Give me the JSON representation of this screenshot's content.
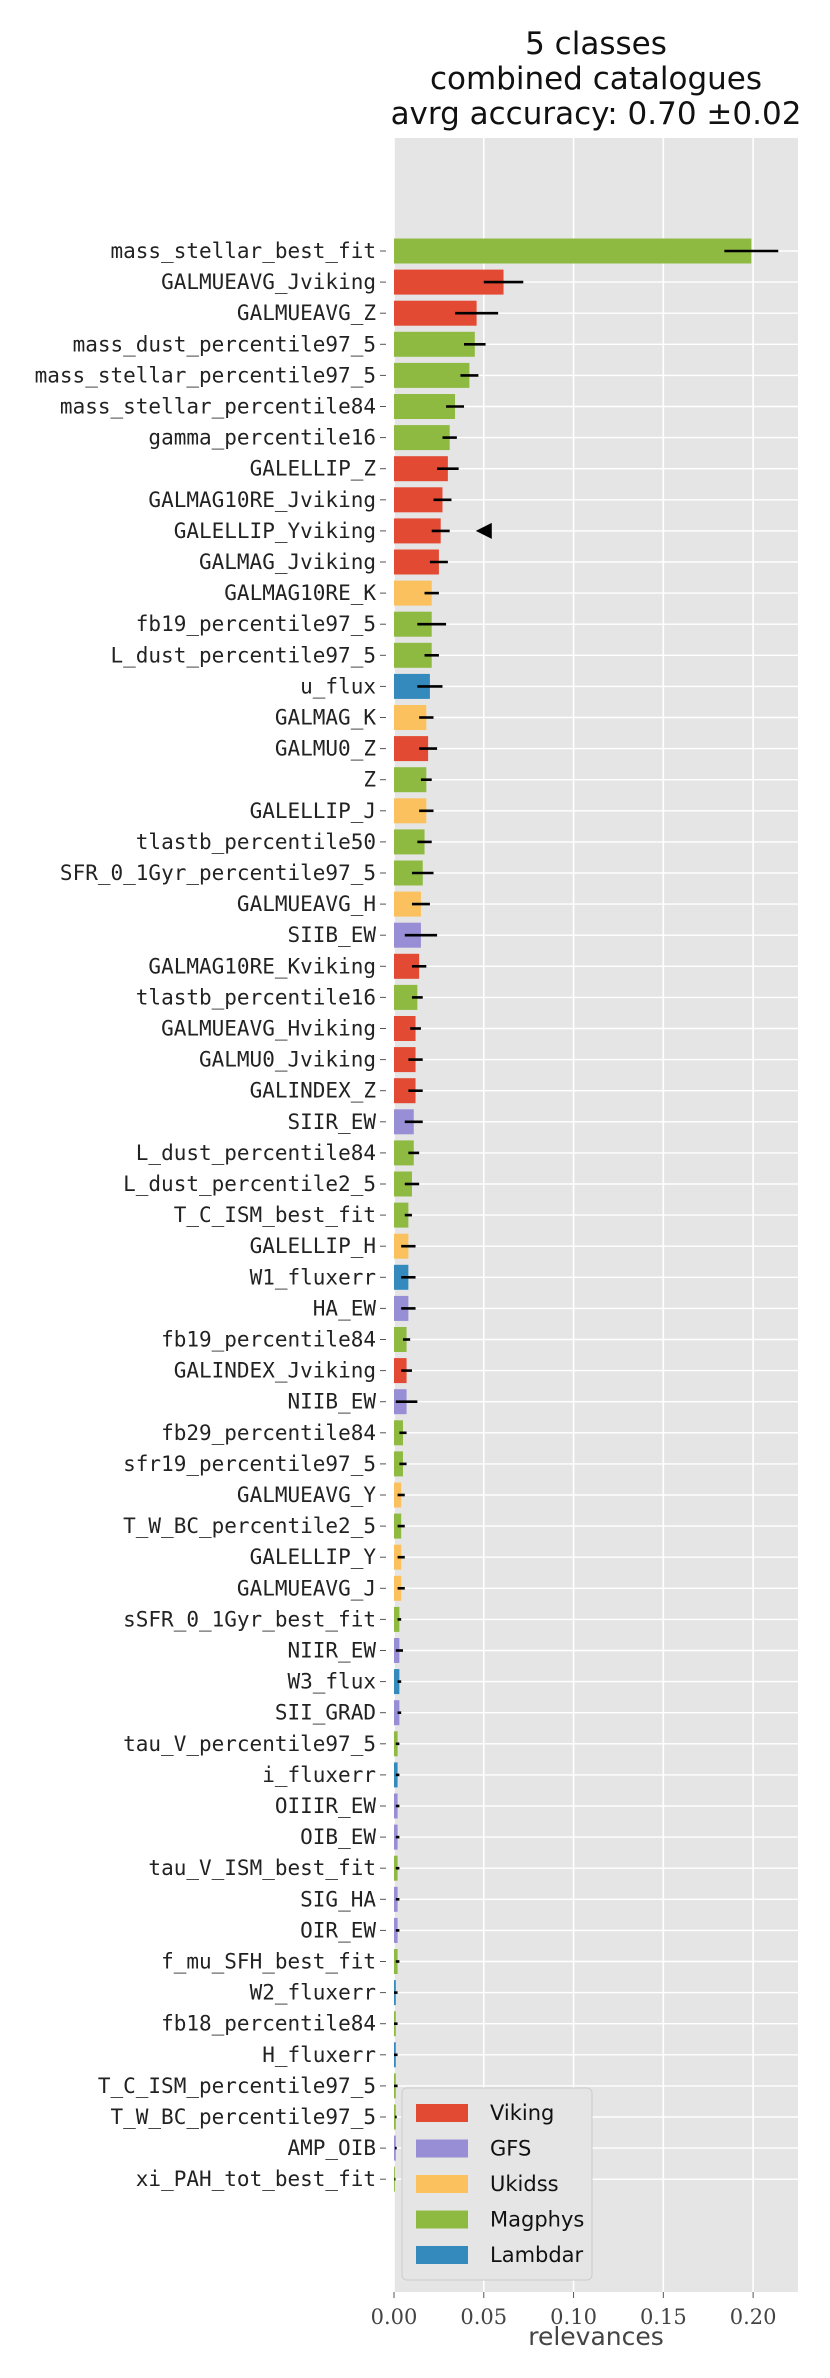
{
  "chart_data": {
    "type": "bar",
    "orientation": "horizontal",
    "title_lines": [
      "5 classes",
      "combined catalogues",
      "avrg accuracy: 0.70 ±0.02"
    ],
    "xlabel": "relevances",
    "ylabel": "",
    "xlim": [
      0.0,
      0.225
    ],
    "xticks": [
      0.0,
      0.05,
      0.1,
      0.15,
      0.2
    ],
    "xtick_labels": [
      "0.00",
      "0.05",
      "0.10",
      "0.15",
      "0.20"
    ],
    "grid": true,
    "legend_position": "lower-left",
    "marker": {
      "type": "left-pointing triangle",
      "category": "GALELLIP_Yviking",
      "x": 0.05
    },
    "classes": [
      {
        "name": "Viking",
        "color": "#e24a33"
      },
      {
        "name": "GFS",
        "color": "#988ed5"
      },
      {
        "name": "Ukidss",
        "color": "#fbc15e"
      },
      {
        "name": "Magphys",
        "color": "#8eba42"
      },
      {
        "name": "Lambdar",
        "color": "#348abd"
      }
    ],
    "bars": [
      {
        "label": "mass_stellar_best_fit",
        "value": 0.199,
        "error": 0.015,
        "class": "Magphys"
      },
      {
        "label": "GALMUEAVG_Jviking",
        "value": 0.061,
        "error": 0.011,
        "class": "Viking"
      },
      {
        "label": "GALMUEAVG_Z",
        "value": 0.046,
        "error": 0.012,
        "class": "Viking"
      },
      {
        "label": "mass_dust_percentile97_5",
        "value": 0.045,
        "error": 0.006,
        "class": "Magphys"
      },
      {
        "label": "mass_stellar_percentile97_5",
        "value": 0.042,
        "error": 0.005,
        "class": "Magphys"
      },
      {
        "label": "mass_stellar_percentile84",
        "value": 0.034,
        "error": 0.005,
        "class": "Magphys"
      },
      {
        "label": "gamma_percentile16",
        "value": 0.031,
        "error": 0.004,
        "class": "Magphys"
      },
      {
        "label": "GALELLIP_Z",
        "value": 0.03,
        "error": 0.006,
        "class": "Viking"
      },
      {
        "label": "GALMAG10RE_Jviking",
        "value": 0.027,
        "error": 0.005,
        "class": "Viking"
      },
      {
        "label": "GALELLIP_Yviking",
        "value": 0.026,
        "error": 0.005,
        "class": "Viking"
      },
      {
        "label": "GALMAG_Jviking",
        "value": 0.025,
        "error": 0.005,
        "class": "Viking"
      },
      {
        "label": "GALMAG10RE_K",
        "value": 0.021,
        "error": 0.004,
        "class": "Ukidss"
      },
      {
        "label": "fb19_percentile97_5",
        "value": 0.021,
        "error": 0.008,
        "class": "Magphys"
      },
      {
        "label": "L_dust_percentile97_5",
        "value": 0.021,
        "error": 0.004,
        "class": "Magphys"
      },
      {
        "label": "u_flux",
        "value": 0.02,
        "error": 0.007,
        "class": "Lambdar"
      },
      {
        "label": "GALMAG_K",
        "value": 0.018,
        "error": 0.004,
        "class": "Ukidss"
      },
      {
        "label": "GALMU0_Z",
        "value": 0.019,
        "error": 0.005,
        "class": "Viking"
      },
      {
        "label": "Z",
        "value": 0.018,
        "error": 0.003,
        "class": "Magphys"
      },
      {
        "label": "GALELLIP_J",
        "value": 0.018,
        "error": 0.004,
        "class": "Ukidss"
      },
      {
        "label": "tlastb_percentile50",
        "value": 0.017,
        "error": 0.004,
        "class": "Magphys"
      },
      {
        "label": "SFR_0_1Gyr_percentile97_5",
        "value": 0.016,
        "error": 0.006,
        "class": "Magphys"
      },
      {
        "label": "GALMUEAVG_H",
        "value": 0.015,
        "error": 0.005,
        "class": "Ukidss"
      },
      {
        "label": "SIIB_EW",
        "value": 0.015,
        "error": 0.009,
        "class": "GFS"
      },
      {
        "label": "GALMAG10RE_Kviking",
        "value": 0.014,
        "error": 0.004,
        "class": "Viking"
      },
      {
        "label": "tlastb_percentile16",
        "value": 0.013,
        "error": 0.003,
        "class": "Magphys"
      },
      {
        "label": "GALMUEAVG_Hviking",
        "value": 0.012,
        "error": 0.003,
        "class": "Viking"
      },
      {
        "label": "GALMU0_Jviking",
        "value": 0.012,
        "error": 0.004,
        "class": "Viking"
      },
      {
        "label": "GALINDEX_Z",
        "value": 0.012,
        "error": 0.004,
        "class": "Viking"
      },
      {
        "label": "SIIR_EW",
        "value": 0.011,
        "error": 0.005,
        "class": "GFS"
      },
      {
        "label": "L_dust_percentile84",
        "value": 0.011,
        "error": 0.003,
        "class": "Magphys"
      },
      {
        "label": "L_dust_percentile2_5",
        "value": 0.01,
        "error": 0.004,
        "class": "Magphys"
      },
      {
        "label": "T_C_ISM_best_fit",
        "value": 0.008,
        "error": 0.002,
        "class": "Magphys"
      },
      {
        "label": "GALELLIP_H",
        "value": 0.008,
        "error": 0.004,
        "class": "Ukidss"
      },
      {
        "label": "W1_fluxerr",
        "value": 0.008,
        "error": 0.004,
        "class": "Lambdar"
      },
      {
        "label": "HA_EW",
        "value": 0.008,
        "error": 0.004,
        "class": "GFS"
      },
      {
        "label": "fb19_percentile84",
        "value": 0.007,
        "error": 0.002,
        "class": "Magphys"
      },
      {
        "label": "GALINDEX_Jviking",
        "value": 0.007,
        "error": 0.003,
        "class": "Viking"
      },
      {
        "label": "NIIB_EW",
        "value": 0.007,
        "error": 0.006,
        "class": "GFS"
      },
      {
        "label": "fb29_percentile84",
        "value": 0.005,
        "error": 0.002,
        "class": "Magphys"
      },
      {
        "label": "sfr19_percentile97_5",
        "value": 0.005,
        "error": 0.002,
        "class": "Magphys"
      },
      {
        "label": "GALMUEAVG_Y",
        "value": 0.004,
        "error": 0.002,
        "class": "Ukidss"
      },
      {
        "label": "T_W_BC_percentile2_5",
        "value": 0.004,
        "error": 0.002,
        "class": "Magphys"
      },
      {
        "label": "GALELLIP_Y",
        "value": 0.004,
        "error": 0.002,
        "class": "Ukidss"
      },
      {
        "label": "GALMUEAVG_J",
        "value": 0.004,
        "error": 0.002,
        "class": "Ukidss"
      },
      {
        "label": "sSFR_0_1Gyr_best_fit",
        "value": 0.003,
        "error": 0.001,
        "class": "Magphys"
      },
      {
        "label": "NIIR_EW",
        "value": 0.003,
        "error": 0.002,
        "class": "GFS"
      },
      {
        "label": "W3_flux",
        "value": 0.003,
        "error": 0.001,
        "class": "Lambdar"
      },
      {
        "label": "SII_GRAD",
        "value": 0.003,
        "error": 0.001,
        "class": "GFS"
      },
      {
        "label": "tau_V_percentile97_5",
        "value": 0.002,
        "error": 0.001,
        "class": "Magphys"
      },
      {
        "label": "i_fluxerr",
        "value": 0.002,
        "error": 0.001,
        "class": "Lambdar"
      },
      {
        "label": "OIIIR_EW",
        "value": 0.002,
        "error": 0.001,
        "class": "GFS"
      },
      {
        "label": "OIB_EW",
        "value": 0.002,
        "error": 0.001,
        "class": "GFS"
      },
      {
        "label": "tau_V_ISM_best_fit",
        "value": 0.002,
        "error": 0.001,
        "class": "Magphys"
      },
      {
        "label": "SIG_HA",
        "value": 0.002,
        "error": 0.001,
        "class": "GFS"
      },
      {
        "label": "OIR_EW",
        "value": 0.002,
        "error": 0.001,
        "class": "GFS"
      },
      {
        "label": "f_mu_SFH_best_fit",
        "value": 0.002,
        "error": 0.001,
        "class": "Magphys"
      },
      {
        "label": "W2_fluxerr",
        "value": 0.001,
        "error": 0.001,
        "class": "Lambdar"
      },
      {
        "label": "fb18_percentile84",
        "value": 0.001,
        "error": 0.001,
        "class": "Magphys"
      },
      {
        "label": "H_fluxerr",
        "value": 0.001,
        "error": 0.001,
        "class": "Lambdar"
      },
      {
        "label": "T_C_ISM_percentile97_5",
        "value": 0.001,
        "error": 0.001,
        "class": "Magphys"
      },
      {
        "label": "T_W_BC_percentile97_5",
        "value": 0.001,
        "error": 0.0005,
        "class": "Magphys"
      },
      {
        "label": "AMP_OIB",
        "value": 0.001,
        "error": 0.0005,
        "class": "GFS"
      },
      {
        "label": "xi_PAH_tot_best_fit",
        "value": 0.0005,
        "error": 0.0003,
        "class": "Magphys"
      }
    ]
  }
}
